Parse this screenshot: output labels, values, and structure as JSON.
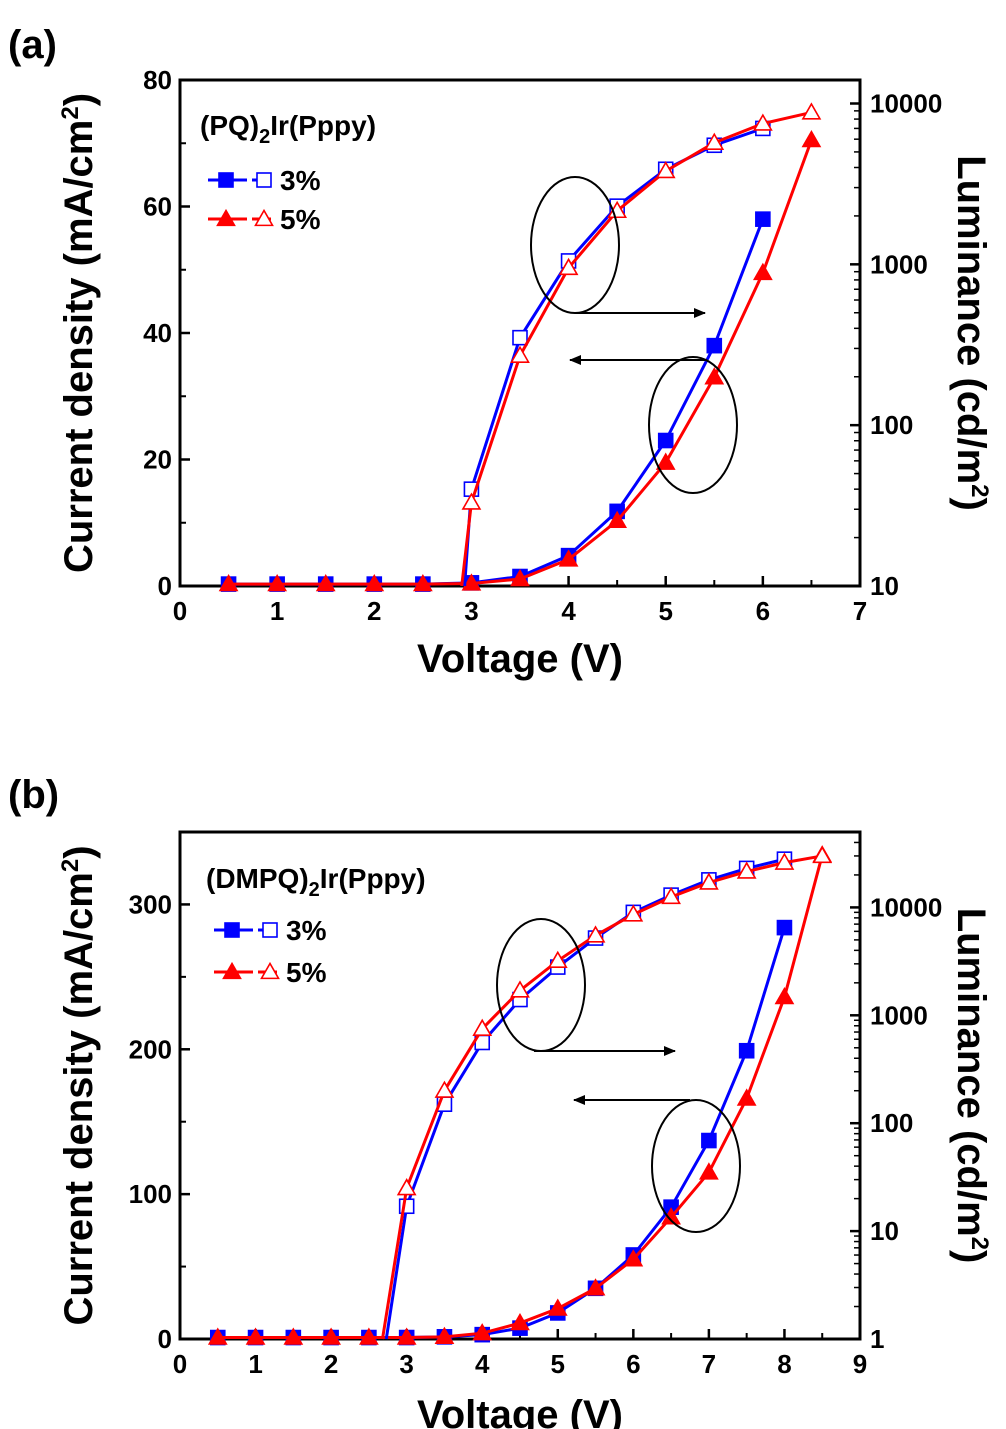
{
  "chart_data": [
    {
      "panel_label": "(a)",
      "type": "line",
      "xlabel": "Voltage (V)",
      "ylabel": "Current density (mA/cm2)",
      "ylabel_parts": [
        "Current density (mA/cm",
        "2",
        ")"
      ],
      "y2label": "Luminance (cd/m2)",
      "y2label_parts": [
        "Luminance (cd/m",
        "2",
        ")"
      ],
      "xlim": [
        0,
        7
      ],
      "ylim": [
        0,
        80
      ],
      "y2lim": [
        10,
        14000
      ],
      "y2scale": "log",
      "xticks": [
        "0",
        "1",
        "2",
        "3",
        "4",
        "5",
        "6",
        "7"
      ],
      "yticks": [
        "0",
        "20",
        "40",
        "60",
        "80"
      ],
      "y2ticks": [
        "10",
        "100",
        "1000",
        "10000"
      ],
      "legend_title": "(PQ)2Ir(Pppy)",
      "legend_title_parts": [
        "(PQ)",
        "2",
        "Ir(Pppy)"
      ],
      "legend_placement": "top-left",
      "series": [
        {
          "name": "3%",
          "color": "#0000ff",
          "marker": "square",
          "fill": "filled",
          "axis": "left",
          "x": [
            0.5,
            1,
            1.5,
            2,
            2.5,
            3,
            3.5,
            4,
            4.5,
            5,
            5.5,
            6
          ],
          "values": [
            0.3,
            0.3,
            0.3,
            0.3,
            0.3,
            0.5,
            1.5,
            4.8,
            11.8,
            23,
            38,
            58
          ]
        },
        {
          "name": "5%",
          "color": "#ff0000",
          "marker": "triangle",
          "fill": "filled",
          "axis": "left",
          "x": [
            0.5,
            1,
            1.5,
            2,
            2.5,
            3,
            3.5,
            4,
            4.5,
            5,
            5.5,
            6,
            6.5
          ],
          "values": [
            0.3,
            0.3,
            0.3,
            0.3,
            0.3,
            0.4,
            1.1,
            4.2,
            10.3,
            19.5,
            33,
            49.5,
            70.5
          ]
        },
        {
          "name": "3%",
          "color": "#0000ff",
          "marker": "square",
          "fill": "open",
          "axis": "right",
          "x": [
            2.93,
            3,
            3.5,
            4,
            4.5,
            5,
            5.5,
            6
          ],
          "values": [
            10,
            40,
            350,
            1050,
            2300,
            3900,
            5500,
            7000
          ]
        },
        {
          "name": "5%",
          "color": "#ff0000",
          "marker": "triangle",
          "fill": "open",
          "axis": "right",
          "x": [
            2.9,
            3,
            3.5,
            4,
            4.5,
            5,
            5.5,
            6,
            6.5
          ],
          "values": [
            10,
            33,
            270,
            950,
            2150,
            3800,
            5700,
            7500,
            8800
          ]
        }
      ]
    },
    {
      "panel_label": "(b)",
      "type": "line",
      "xlabel": "Voltage (V)",
      "ylabel": "Current density (mA/cm2)",
      "ylabel_parts": [
        "Current density (mA/cm",
        "2",
        ")"
      ],
      "y2label": "Luminance (cd/m2)",
      "y2label_parts": [
        "Luminance (cd/m",
        "2",
        ")"
      ],
      "xlim": [
        0,
        9
      ],
      "ylim": [
        0,
        350
      ],
      "y2lim": [
        1,
        50000
      ],
      "y2scale": "log",
      "xticks": [
        "0",
        "1",
        "2",
        "3",
        "4",
        "5",
        "6",
        "7",
        "8",
        "9"
      ],
      "yticks": [
        "0",
        "100",
        "200",
        "300"
      ],
      "y2ticks": [
        "1",
        "10",
        "100",
        "1000",
        "10000"
      ],
      "legend_title": "(DMPQ)2Ir(Pppy)",
      "legend_title_parts": [
        "(DMPQ)",
        "2",
        "Ir(Pppy)"
      ],
      "legend_placement": "top-left",
      "series": [
        {
          "name": "3%",
          "color": "#0000ff",
          "marker": "square",
          "fill": "filled",
          "axis": "left",
          "x": [
            0.5,
            1,
            1.5,
            2,
            2.5,
            3,
            3.5,
            4,
            4.5,
            5,
            5.5,
            6,
            6.5,
            7,
            7.5,
            8
          ],
          "values": [
            1,
            1,
            1,
            1,
            1,
            1,
            1.5,
            3,
            7.5,
            18,
            35,
            58,
            91,
            137,
            199,
            284
          ]
        },
        {
          "name": "5%",
          "color": "#ff0000",
          "marker": "triangle",
          "fill": "filled",
          "axis": "left",
          "x": [
            0.5,
            1,
            1.5,
            2,
            2.5,
            3,
            3.5,
            4,
            4.5,
            5,
            5.5,
            6,
            6.5,
            7,
            7.5,
            8,
            8.5
          ],
          "values": [
            1,
            1,
            1,
            1,
            1,
            1,
            1.5,
            4,
            11,
            21,
            35,
            55,
            84,
            115,
            166,
            236,
            334
          ]
        },
        {
          "name": "3%",
          "color": "#0000ff",
          "marker": "square",
          "fill": "open",
          "axis": "right",
          "x": [
            2.73,
            3,
            3.5,
            4,
            4.5,
            5,
            5.5,
            6,
            6.5,
            7,
            7.5,
            8
          ],
          "values": [
            1,
            17,
            150,
            560,
            1400,
            2800,
            5200,
            9000,
            13000,
            18000,
            23000,
            28000
          ]
        },
        {
          "name": "5%",
          "color": "#ff0000",
          "marker": "triangle",
          "fill": "open",
          "axis": "right",
          "x": [
            2.68,
            3,
            3.5,
            4,
            4.5,
            5,
            5.5,
            6,
            6.5,
            7,
            7.5,
            8,
            8.5
          ],
          "values": [
            1,
            25,
            200,
            750,
            1700,
            3200,
            5500,
            8600,
            12500,
            17000,
            21500,
            26000,
            30000
          ]
        }
      ],
      "annotations": []
    }
  ]
}
